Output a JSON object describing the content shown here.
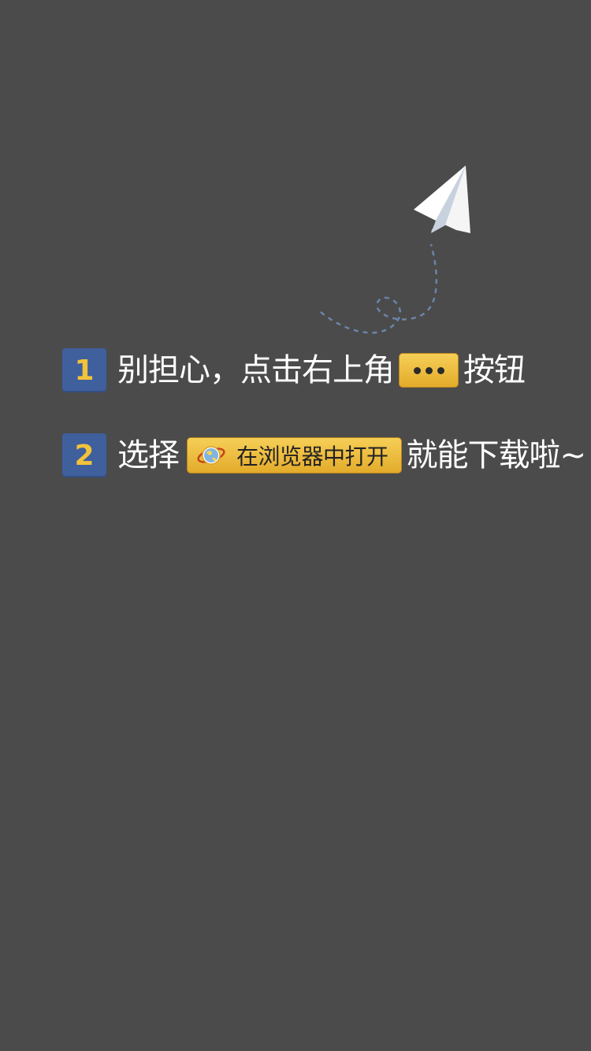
{
  "step1": {
    "number": "1",
    "text_before": "别担心，点击右上角",
    "button_icon": "more-dots-icon",
    "text_after": "按钮"
  },
  "step2": {
    "number": "2",
    "text_before": "选择",
    "button_icon": "planet-icon",
    "button_label": "在浏览器中打开",
    "text_after": "就能下载啦~"
  },
  "colors": {
    "background": "#4b4b4b",
    "badge": "#3f5f9d",
    "badge_number": "#f2c23a",
    "button": "#f6cf57",
    "text": "#ffffff"
  }
}
